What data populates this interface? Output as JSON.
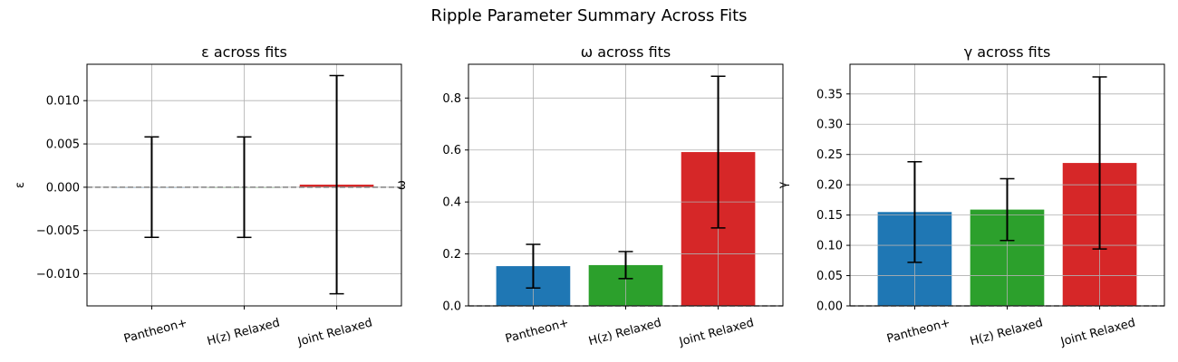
{
  "figure": {
    "suptitle": "Ripple Parameter Summary Across Fits"
  },
  "colors": {
    "series": [
      "#1f77b4",
      "#2ca02c",
      "#d62728"
    ],
    "grid": "#b0b0b0",
    "zero_line": "#808080",
    "error_bar": "#000000"
  },
  "chart_data": [
    {
      "type": "bar",
      "title": "ε across fits",
      "xlabel": "",
      "ylabel": "ε",
      "categories": [
        "Pantheon+",
        "H(z) Relaxed",
        "Joint Relaxed"
      ],
      "values": [
        1e-05,
        1e-05,
        0.0003
      ],
      "errors": [
        0.0058,
        0.0058,
        0.0126
      ],
      "ylim": [
        -0.0137,
        0.0142
      ],
      "yticks": [
        -0.01,
        -0.005,
        0.0,
        0.005,
        0.01
      ],
      "ytick_labels": [
        "−0.010",
        "−0.005",
        "0.000",
        "0.005",
        "0.010"
      ],
      "grid": true,
      "zero_line": "dashed"
    },
    {
      "type": "bar",
      "title": "ω across fits",
      "xlabel": "",
      "ylabel": "ω",
      "categories": [
        "Pantheon+",
        "H(z) Relaxed",
        "Joint Relaxed"
      ],
      "values": [
        0.153,
        0.157,
        0.592
      ],
      "errors": [
        0.084,
        0.052,
        0.292
      ],
      "ylim": [
        0,
        0.93
      ],
      "yticks": [
        0.0,
        0.2,
        0.4,
        0.6,
        0.8
      ],
      "ytick_labels": [
        "0.0",
        "0.2",
        "0.4",
        "0.6",
        "0.8"
      ],
      "grid": true,
      "zero_line": "dashed"
    },
    {
      "type": "bar",
      "title": "γ across fits",
      "xlabel": "",
      "ylabel": "γ",
      "categories": [
        "Pantheon+",
        "H(z) Relaxed",
        "Joint Relaxed"
      ],
      "values": [
        0.155,
        0.159,
        0.236
      ],
      "errors": [
        0.083,
        0.051,
        0.142
      ],
      "ylim": [
        0,
        0.399
      ],
      "yticks": [
        0.0,
        0.05,
        0.1,
        0.15,
        0.2,
        0.25,
        0.3,
        0.35
      ],
      "ytick_labels": [
        "0.00",
        "0.05",
        "0.10",
        "0.15",
        "0.20",
        "0.25",
        "0.30",
        "0.35"
      ],
      "grid": true,
      "zero_line": "dashed"
    }
  ]
}
